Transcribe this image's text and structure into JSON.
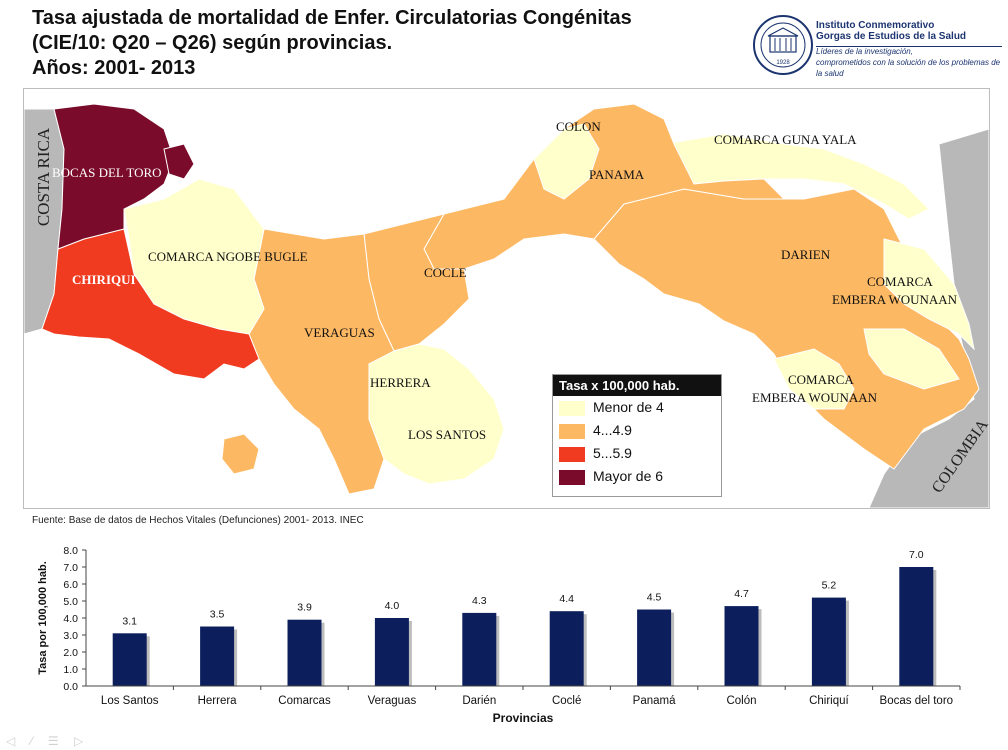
{
  "title": {
    "line1": "Tasa  ajustada de mortalidad de Enfer. Circulatorias Congénitas",
    "line2": "(CIE/10: Q20 – Q26) según provincias.",
    "line3": "Años: 2001- 2013"
  },
  "logo": {
    "name1": "Instituto Conmemorativo",
    "name2": "Gorgas de Estudios de la Salud",
    "tag1": "Líderes de la investigación,",
    "tag2": "comprometidos con la solución de los problemas de la salud",
    "seal_year": "1928"
  },
  "map": {
    "labels": {
      "costa_rica": "COSTA RICA",
      "colombia": "COLOMBIA",
      "bocas": "BOCAS DEL TORO",
      "chiriqui": "CHIRIQUI",
      "ngobe": "COMARCA NGOBE BUGLE",
      "veraguas": "VERAGUAS",
      "cocle": "COCLE",
      "herrera": "HERRERA",
      "los_santos": "LOS SANTOS",
      "colon": "COLON",
      "panama": "PANAMA",
      "guna": "COMARCA GUNA YALA",
      "darien": "DARIEN",
      "embera1_a": "COMARCA",
      "embera1_b": "EMBERA WOUNAAN",
      "embera2_a": "COMARCA",
      "embera2_b": "EMBERA WOUNAAN"
    },
    "colors": {
      "low": "#ffffcc",
      "mid": "#fdb863",
      "high": "#f03b20",
      "top": "#7a0b2a",
      "neighbor": "#b8b8b8"
    }
  },
  "legend": {
    "title": "Tasa x 100,000 hab.",
    "items": [
      {
        "label": "Menor de 4",
        "color": "#ffffcc"
      },
      {
        "label": "4...4.9",
        "color": "#fdb863"
      },
      {
        "label": "5...5.9",
        "color": "#f03b20"
      },
      {
        "label": "Mayor de 6",
        "color": "#7a0b2a"
      }
    ]
  },
  "source": "Fuente: Base de datos de Hechos Vitales (Defunciones) 2001- 2013. INEC",
  "chart_data": {
    "type": "bar",
    "categories": [
      "Los Santos",
      "Herrera",
      "Comarcas",
      "Veraguas",
      "Darién",
      "Coclé",
      "Panamá",
      "Colón",
      "Chiriquí",
      "Bocas del toro"
    ],
    "values": [
      3.1,
      3.5,
      3.9,
      4.0,
      4.3,
      4.4,
      4.5,
      4.7,
      5.2,
      7.0
    ],
    "value_labels": [
      "3.1",
      "3.5",
      "3.9",
      "4.0",
      "4.3",
      "4.4",
      "4.5",
      "4.7",
      "5.2",
      "7.0"
    ],
    "xlabel": "Provincias",
    "ylabel": "Tasa por 100,000 hab.",
    "ylim": [
      0,
      8
    ],
    "yticks": [
      "0.0",
      "1.0",
      "2.0",
      "3.0",
      "4.0",
      "5.0",
      "6.0",
      "7.0",
      "8.0"
    ],
    "bar_color": "#0c1f5c",
    "grid": false,
    "legend": false
  }
}
